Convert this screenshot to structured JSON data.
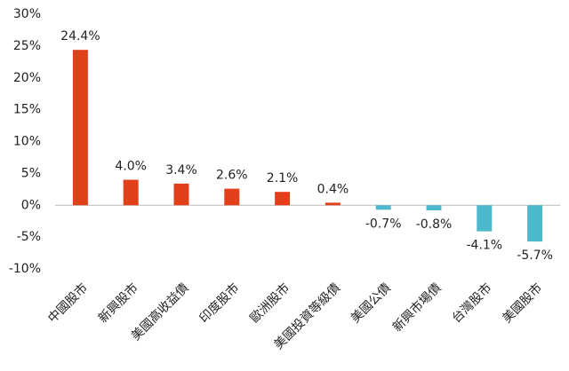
{
  "chart_data": {
    "type": "bar",
    "categories": [
      "中國股市",
      "新興股市",
      "美國高收益債",
      "印度股市",
      "歐洲股市",
      "美國投資等級債",
      "美國公債",
      "新興市場債",
      "台灣股市",
      "美國股市"
    ],
    "values": [
      24.4,
      4.0,
      3.4,
      2.6,
      2.1,
      0.4,
      -0.7,
      -0.8,
      -4.1,
      -5.7
    ],
    "value_labels": [
      "24.4%",
      "4.0%",
      "3.4%",
      "2.6%",
      "2.1%",
      "0.4%",
      "-0.7%",
      "-0.8%",
      "-4.1%",
      "-5.7%"
    ],
    "colors": [
      "#e2401b",
      "#e2401b",
      "#e2401b",
      "#e2401b",
      "#e2401b",
      "#e2401b",
      "#4cb9cd",
      "#4cb9cd",
      "#4cb9cd",
      "#4cb9cd"
    ],
    "ylim": [
      -10,
      30
    ],
    "yticks": [
      {
        "value": 30,
        "label": "30%"
      },
      {
        "value": 25,
        "label": "25%"
      },
      {
        "value": 20,
        "label": "20%"
      },
      {
        "value": 15,
        "label": "15%"
      },
      {
        "value": 10,
        "label": "10%"
      },
      {
        "value": 5,
        "label": "5%"
      },
      {
        "value": 0,
        "label": "0%"
      },
      {
        "value": -5,
        "label": "-5%"
      },
      {
        "value": -10,
        "label": "-10%"
      }
    ],
    "grid": false
  }
}
